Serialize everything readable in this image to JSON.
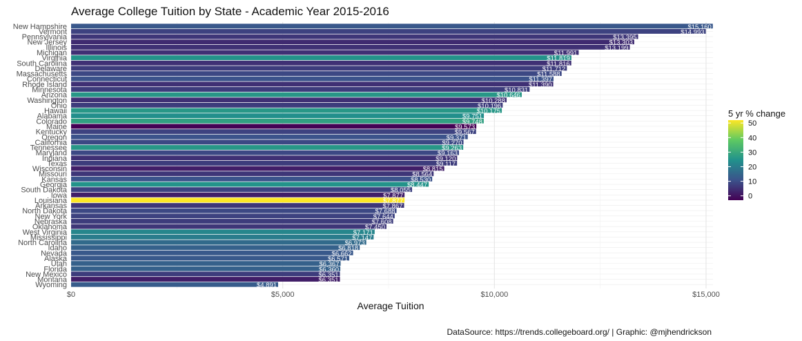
{
  "chart_data": {
    "type": "bar",
    "orientation": "horizontal",
    "title": "Average College Tuition by State - Academic Year 2015-2016",
    "xlabel": "Average Tuition",
    "ylabel": "",
    "xlim": [
      0,
      15160
    ],
    "x_ticks": [
      0,
      5000,
      10000,
      15000
    ],
    "x_tick_labels": [
      "$0",
      "$5,000",
      "$10,000",
      "$15,000"
    ],
    "grid": true,
    "legend": {
      "title": "5 yr % change",
      "placement": "right",
      "type": "colorbar",
      "ticks": [
        0,
        10,
        20,
        30,
        40,
        50
      ],
      "range": [
        -3,
        52
      ],
      "colors": [
        "#440154",
        "#3b528b",
        "#21918c",
        "#5ec962",
        "#fde725"
      ]
    },
    "caption": "DataSource: https://trends.collegeboard.org/ | Graphic: @mjhendrickson",
    "categories": [
      "New Hampshire",
      "Vermont",
      "Pennsylvania",
      "New Jersey",
      "Illinois",
      "Michigan",
      "Virginia",
      "South Carolina",
      "Delaware",
      "Massachusetts",
      "Connecticut",
      "Rhode Island",
      "Minnesota",
      "Arizona",
      "Washington",
      "Ohio",
      "Hawaii",
      "Alabama",
      "Colorado",
      "Maine",
      "Kentucky",
      "Oregon",
      "California",
      "Tennessee",
      "Maryland",
      "Indiana",
      "Texas",
      "Wisconsin",
      "Missouri",
      "Kansas",
      "Georgia",
      "South Dakota",
      "Iowa",
      "Louisiana",
      "Arkansas",
      "North Dakota",
      "New York",
      "Nebraska",
      "Oklahoma",
      "West Virginia",
      "Mississippi",
      "North Carolina",
      "Idaho",
      "Nevada",
      "Alaska",
      "Utah",
      "Florida",
      "New Mexico",
      "Montana",
      "Wyoming"
    ],
    "values": [
      15160,
      14993,
      13395,
      13303,
      13199,
      11991,
      11819,
      11816,
      11712,
      11588,
      11397,
      11390,
      10831,
      10646,
      10288,
      10196,
      10175,
      9751,
      9748,
      9573,
      9567,
      9371,
      9270,
      9263,
      9163,
      9120,
      9117,
      8815,
      8564,
      8530,
      8447,
      8055,
      7877,
      7877,
      7867,
      7688,
      7644,
      7608,
      7450,
      7171,
      7147,
      6973,
      6818,
      6662,
      6571,
      6367,
      6360,
      6351,
      6351,
      4891
    ],
    "value_labels": [
      "$15,160",
      "$14,993",
      "$13,395",
      "$13,303",
      "$13,199",
      "$11,991",
      "$11,819",
      "$11,816",
      "$11,712",
      "$11,588",
      "$11,397",
      "$11,390",
      "$10,831",
      "$10,646",
      "$10,288",
      "$10,196",
      "$10,175",
      "$9,751",
      "$9,748",
      "$9,573",
      "$9,567",
      "$9,371",
      "$9,270",
      "$9,263",
      "$9,163",
      "$9,120",
      "$9,117",
      "$8,815",
      "$8,564",
      "$8,530",
      "$8,447",
      "$8,055",
      "$7,877",
      "$7,877",
      "$7,867",
      "$7,688",
      "$7,644",
      "$7,608",
      "$7,450",
      "$7,171",
      "$7,147",
      "$6,973",
      "$6,818",
      "$6,662",
      "$6,571",
      "$6,367",
      "$6,360",
      "$6,351",
      "$6,351",
      "$4,891"
    ],
    "pct_change": [
      12,
      8,
      6,
      4,
      5,
      5,
      25,
      5,
      7,
      9,
      11,
      5,
      7,
      26,
      5,
      7,
      26,
      24,
      28,
      -3,
      8,
      11,
      9,
      26,
      9,
      5,
      7,
      2,
      6,
      11,
      25,
      8,
      2,
      52,
      6,
      9,
      8,
      7,
      6,
      22,
      20,
      16,
      14,
      12,
      12,
      14,
      14,
      7,
      2,
      13
    ]
  }
}
